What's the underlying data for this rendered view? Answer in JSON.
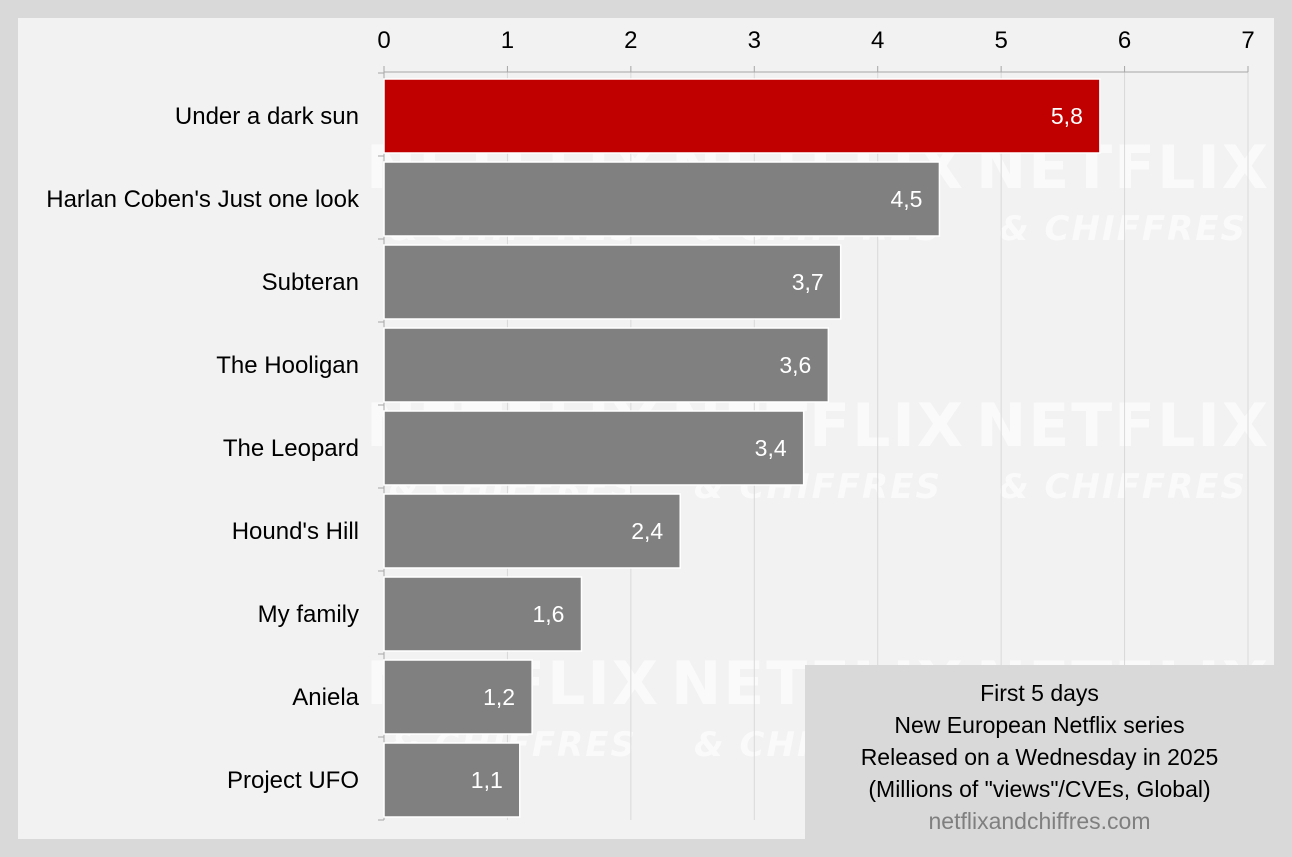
{
  "chart_data": {
    "type": "bar",
    "orientation": "horizontal",
    "categories": [
      "Under a dark sun",
      "Harlan Coben's Just one look",
      "Subteran",
      "The Hooligan",
      "The Leopard",
      "Hound's Hill",
      "My family",
      "Aniela",
      "Project UFO"
    ],
    "values": [
      5.8,
      4.5,
      3.7,
      3.6,
      3.4,
      2.4,
      1.6,
      1.2,
      1.1
    ],
    "data_labels": [
      "5,8",
      "4,5",
      "3,7",
      "3,6",
      "3,4",
      "2,4",
      "1,6",
      "1,2",
      "1,1"
    ],
    "highlight_index": 0,
    "colors": {
      "highlight": "#c00000",
      "default": "#808080",
      "background": "#f2f2f2",
      "frame": "#d9d9d9",
      "grid": "#d9d9d9"
    },
    "xlim": [
      0,
      7
    ],
    "x_ticks": [
      "0",
      "1",
      "2",
      "3",
      "4",
      "5",
      "6",
      "7"
    ],
    "x_axis_position": "top",
    "grid": true,
    "legend": "none"
  },
  "info_box": {
    "lines": [
      "First 5 days",
      "New European Netflix series",
      "Released on a Wednesday in 2025",
      "(Millions of \"views\"/CVEs, Global)"
    ],
    "source": "netflixandchiffres.com"
  },
  "watermark": {
    "line1": "NETFLIX",
    "line2": "& CHIFFRES"
  }
}
